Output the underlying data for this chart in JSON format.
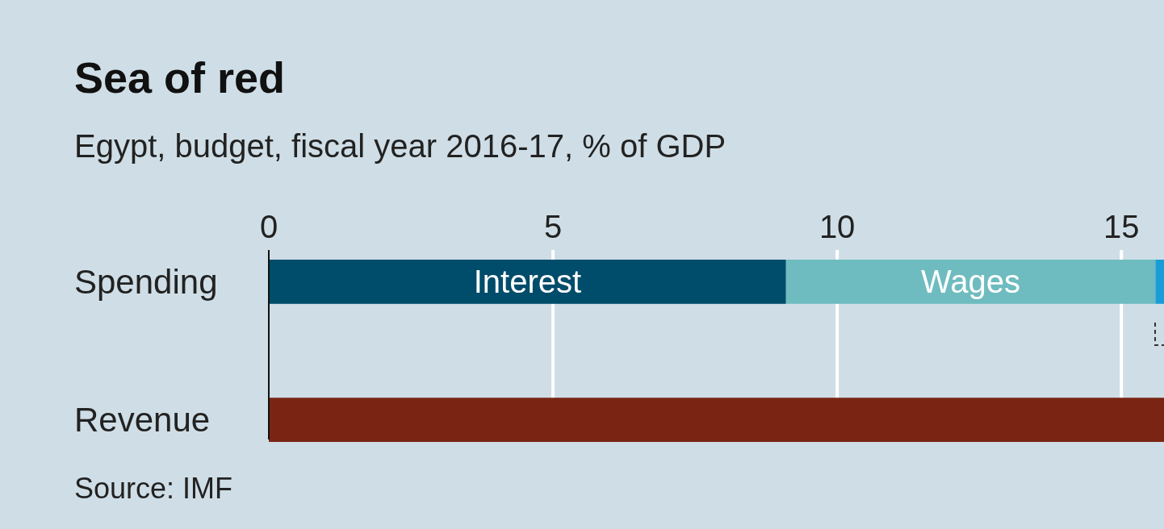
{
  "chart_data": {
    "type": "bar",
    "orientation": "horizontal",
    "stacked": true,
    "title": "Sea of red",
    "subtitle": "Egypt, budget, fiscal year 2016-17, % of GDP",
    "categories": [
      "Spending",
      "Revenue"
    ],
    "series": [
      {
        "name": "Interest",
        "color": "#004c6b",
        "values": [
          9.1,
          null
        ]
      },
      {
        "name": "Wages",
        "color": "#6ebcbf",
        "values": [
          6.5,
          null
        ]
      },
      {
        "color": "#1a9cd8",
        "values": [
          0.15,
          null
        ]
      },
      {
        "color": "#7a2514",
        "values": [
          null,
          15.75
        ]
      }
    ],
    "xlim": [
      0,
      15.75
    ],
    "xticks": [
      0,
      5,
      10,
      15
    ],
    "grid": "x",
    "annotations": [
      "Source: IMF"
    ]
  }
}
